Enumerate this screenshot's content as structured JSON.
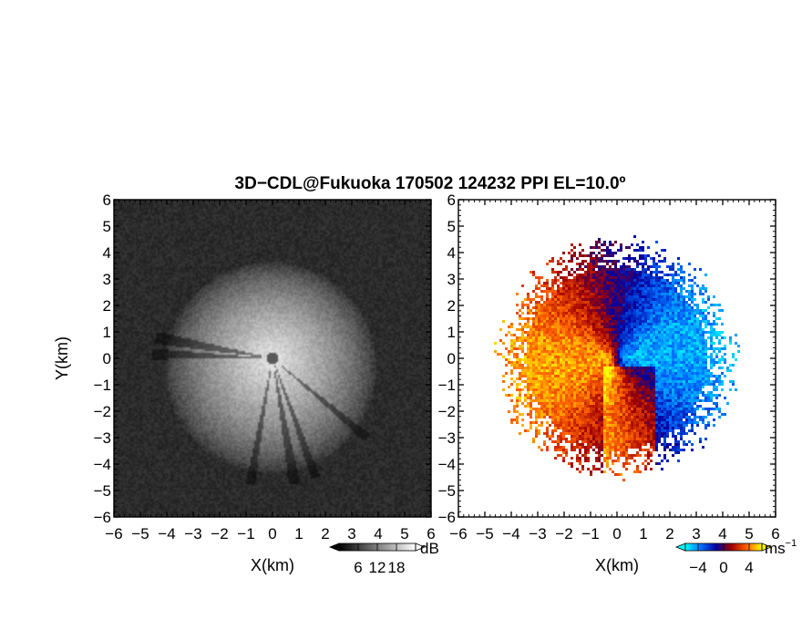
{
  "title": "3D−CDL@Fukuoka 170502 124232 PPI EL=10.0º",
  "chart_data": [
    {
      "type": "heatmap",
      "variable": "intensity",
      "xlabel": "X(km)",
      "ylabel": "Y(km)",
      "xlim": [
        -6,
        6
      ],
      "ylim": [
        -6,
        6
      ],
      "xticks": [
        "−6",
        "−5",
        "−4",
        "−3",
        "−2",
        "−1",
        "0",
        "1",
        "2",
        "3",
        "4",
        "5",
        "6"
      ],
      "yticks": [
        "−6",
        "−5",
        "−4",
        "−3",
        "−2",
        "−1",
        "0",
        "1",
        "2",
        "3",
        "4",
        "5",
        "6"
      ],
      "colorbar": {
        "unit": "dB",
        "ticks": [
          "6",
          "12",
          "18"
        ],
        "tick_values": [
          6,
          12,
          18
        ],
        "range": [
          0,
          24
        ],
        "colors": [
          "#000000",
          "#ffffff"
        ]
      },
      "radar_center": [
        0,
        0
      ]
    },
    {
      "type": "heatmap",
      "variable": "doppler velocity",
      "xlabel": "X(km)",
      "ylabel": "",
      "xlim": [
        -6,
        6
      ],
      "ylim": [
        -6,
        6
      ],
      "xticks": [
        "−6",
        "−5",
        "−4",
        "−3",
        "−2",
        "−1",
        "0",
        "1",
        "2",
        "3",
        "4",
        "5",
        "6"
      ],
      "yticks": [
        "−6",
        "−5",
        "−4",
        "−3",
        "−2",
        "−1",
        "0",
        "1",
        "2",
        "3",
        "4",
        "5",
        "6"
      ],
      "colorbar": {
        "unit": "ms",
        "unit_exp": "−1",
        "ticks": [
          "−4",
          "0",
          "4"
        ],
        "tick_values": [
          -4,
          0,
          4
        ],
        "range": [
          -6,
          6
        ],
        "colors": [
          "#00ffff",
          "#0070ff",
          "#0000a0",
          "#a00000",
          "#ff6000",
          "#ffff00"
        ]
      },
      "radar_center": [
        0,
        0
      ],
      "max_range_km": 4.3
    }
  ]
}
